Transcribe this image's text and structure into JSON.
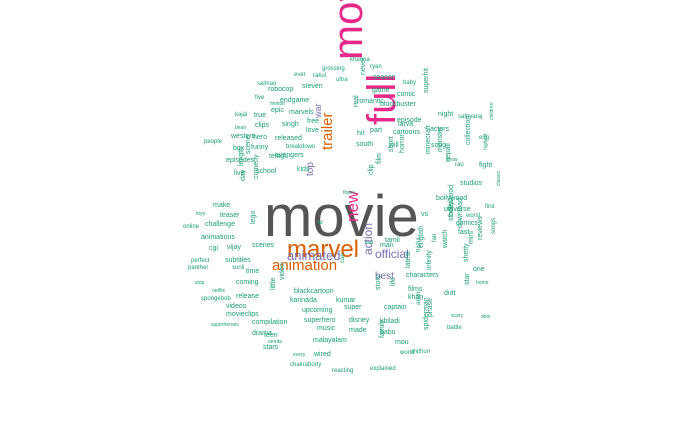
{
  "palette": {
    "dark": "#555555",
    "pink": "#e7298a",
    "orange": "#d95f02",
    "teal": "#1b9e77",
    "purple": "#7570b3"
  },
  "words": [
    {
      "text": "movie",
      "color": "dark"
    },
    {
      "text": "movies",
      "color": "pink"
    },
    {
      "text": "full",
      "color": "pink"
    },
    {
      "text": "marvel",
      "color": "orange"
    },
    {
      "text": "animation",
      "color": "orange"
    },
    {
      "text": "trailer",
      "color": "orange"
    },
    {
      "text": "new",
      "color": "pink"
    },
    {
      "text": "animated",
      "color": "purple"
    },
    {
      "text": "official",
      "color": "purple"
    },
    {
      "text": "action",
      "color": "purple"
    },
    {
      "text": "war",
      "color": "purple"
    },
    {
      "text": "best",
      "color": "purple"
    },
    {
      "text": "top",
      "color": "purple"
    },
    {
      "text": "khanna",
      "color": "teal"
    },
    {
      "text": "ryan",
      "color": "teal"
    },
    {
      "text": "grossing",
      "color": "teal"
    },
    {
      "text": "rakul",
      "color": "teal"
    },
    {
      "text": "game",
      "color": "teal"
    },
    {
      "text": "ever",
      "color": "teal"
    },
    {
      "text": "salman",
      "color": "teal"
    },
    {
      "text": "ultra",
      "color": "teal"
    },
    {
      "text": "never",
      "color": "teal"
    },
    {
      "text": "season",
      "color": "teal"
    },
    {
      "text": "baby",
      "color": "teal"
    },
    {
      "text": "robocop",
      "color": "teal"
    },
    {
      "text": "steven",
      "color": "teal"
    },
    {
      "text": "comic",
      "color": "teal"
    },
    {
      "text": "five",
      "color": "teal"
    },
    {
      "text": "motion",
      "color": "teal"
    },
    {
      "text": "endgame",
      "color": "teal"
    },
    {
      "text": "romantic",
      "color": "teal"
    },
    {
      "text": "blockbuster",
      "color": "teal"
    },
    {
      "text": "superhit",
      "color": "teal"
    },
    {
      "text": "night",
      "color": "teal"
    },
    {
      "text": "sathyaraj",
      "color": "teal"
    },
    {
      "text": "kajal",
      "color": "teal"
    },
    {
      "text": "true",
      "color": "teal"
    },
    {
      "text": "epic",
      "color": "teal"
    },
    {
      "text": "marvels",
      "color": "teal"
    },
    {
      "text": "real",
      "color": "teal"
    },
    {
      "text": "larva",
      "color": "teal"
    },
    {
      "text": "bean",
      "color": "teal"
    },
    {
      "text": "clips",
      "color": "teal"
    },
    {
      "text": "singh",
      "color": "teal"
    },
    {
      "text": "free",
      "color": "teal"
    },
    {
      "text": "episode",
      "color": "teal"
    },
    {
      "text": "hit",
      "color": "teal"
    },
    {
      "text": "love",
      "color": "teal"
    },
    {
      "text": "part",
      "color": "teal"
    },
    {
      "text": "cartoons",
      "color": "teal"
    },
    {
      "text": "actors",
      "color": "teal"
    },
    {
      "text": "western",
      "color": "teal"
    },
    {
      "text": "hero",
      "color": "teal"
    },
    {
      "text": "released",
      "color": "teal"
    },
    {
      "text": "south",
      "color": "teal"
    },
    {
      "text": "will",
      "color": "teal"
    },
    {
      "text": "song",
      "color": "teal"
    },
    {
      "text": "box",
      "color": "teal"
    },
    {
      "text": "funny",
      "color": "teal"
    },
    {
      "text": "breakdown",
      "color": "teal"
    },
    {
      "text": "avengers",
      "color": "teal"
    },
    {
      "text": "episodes",
      "color": "teal"
    },
    {
      "text": "kids",
      "color": "teal"
    },
    {
      "text": "telugu",
      "color": "teal"
    },
    {
      "text": "school",
      "color": "teal"
    },
    {
      "text": "horror",
      "color": "teal"
    },
    {
      "text": "short",
      "color": "teal"
    },
    {
      "text": "film",
      "color": "teal"
    },
    {
      "text": "clip",
      "color": "teal"
    },
    {
      "text": "minecraft",
      "color": "teal"
    },
    {
      "text": "monster",
      "color": "teal"
    },
    {
      "text": "studios",
      "color": "teal"
    },
    {
      "text": "fight",
      "color": "teal"
    },
    {
      "text": "collection",
      "color": "teal"
    },
    {
      "text": "bollywood",
      "color": "teal"
    },
    {
      "text": "universe",
      "color": "teal"
    },
    {
      "text": "comics",
      "color": "teal"
    },
    {
      "text": "teaser",
      "color": "teal"
    },
    {
      "text": "challenge",
      "color": "teal"
    },
    {
      "text": "animations",
      "color": "teal"
    },
    {
      "text": "make",
      "color": "teal"
    },
    {
      "text": "comedy",
      "color": "teal"
    },
    {
      "text": "lego",
      "color": "teal"
    },
    {
      "text": "scenes",
      "color": "teal"
    },
    {
      "text": "cgi",
      "color": "teal"
    },
    {
      "text": "vijay",
      "color": "teal"
    },
    {
      "text": "subtitles",
      "color": "teal"
    },
    {
      "text": "sunil",
      "color": "teal"
    },
    {
      "text": "time",
      "color": "teal"
    },
    {
      "text": "coming",
      "color": "teal"
    },
    {
      "text": "release",
      "color": "teal"
    },
    {
      "text": "videos",
      "color": "teal"
    },
    {
      "text": "movieclips",
      "color": "teal"
    },
    {
      "text": "compilation",
      "color": "teal"
    },
    {
      "text": "superheroes",
      "color": "teal"
    },
    {
      "text": "drama",
      "color": "teal"
    },
    {
      "text": "teen",
      "color": "teal"
    },
    {
      "text": "stars",
      "color": "teal"
    },
    {
      "text": "wired",
      "color": "teal"
    },
    {
      "text": "music",
      "color": "teal"
    },
    {
      "text": "made",
      "color": "teal"
    },
    {
      "text": "malayalam",
      "color": "teal"
    },
    {
      "text": "superhero",
      "color": "teal"
    },
    {
      "text": "disney",
      "color": "teal"
    },
    {
      "text": "upcoming",
      "color": "teal"
    },
    {
      "text": "super",
      "color": "teal"
    },
    {
      "text": "khiladi",
      "color": "teal"
    },
    {
      "text": "babu",
      "color": "teal"
    },
    {
      "text": "mou",
      "color": "teal"
    },
    {
      "text": "captain",
      "color": "teal"
    },
    {
      "text": "spiderman",
      "color": "teal"
    },
    {
      "text": "kannada",
      "color": "teal"
    },
    {
      "text": "kumar",
      "color": "teal"
    },
    {
      "text": "blackcartoon",
      "color": "teal"
    },
    {
      "text": "tamil",
      "color": "teal"
    },
    {
      "text": "man",
      "color": "teal"
    },
    {
      "text": "english",
      "color": "teal"
    },
    {
      "text": "latest",
      "color": "teal"
    },
    {
      "text": "story",
      "color": "teal"
    },
    {
      "text": "life",
      "color": "teal"
    },
    {
      "text": "films",
      "color": "teal"
    },
    {
      "text": "khan",
      "color": "teal"
    },
    {
      "text": "dutt",
      "color": "teal"
    },
    {
      "text": "star",
      "color": "teal"
    },
    {
      "text": "infinity",
      "color": "teal"
    },
    {
      "text": "shetty",
      "color": "teal"
    },
    {
      "text": "one",
      "color": "teal"
    },
    {
      "text": "mini",
      "color": "teal"
    },
    {
      "text": "worst",
      "color": "teal"
    },
    {
      "text": "watch",
      "color": "teal"
    },
    {
      "text": "download",
      "color": "teal"
    },
    {
      "text": "explained",
      "color": "teal"
    },
    {
      "text": "chakraborty",
      "color": "teal"
    },
    {
      "text": "reacting",
      "color": "teal"
    },
    {
      "text": "world",
      "color": "teal"
    },
    {
      "text": "mithun",
      "color": "teal"
    },
    {
      "text": "every",
      "color": "teal"
    },
    {
      "text": "amrita",
      "color": "teal"
    },
    {
      "text": "battle",
      "color": "teal"
    },
    {
      "text": "scary",
      "color": "teal"
    },
    {
      "text": "deol",
      "color": "teal"
    },
    {
      "text": "home",
      "color": "teal"
    },
    {
      "text": "online",
      "color": "teal"
    },
    {
      "text": "toys",
      "color": "teal"
    },
    {
      "text": "perfect",
      "color": "teal"
    },
    {
      "text": "panther",
      "color": "teal"
    },
    {
      "text": "stop",
      "color": "teal"
    },
    {
      "text": "netflix",
      "color": "teal"
    },
    {
      "text": "spongebob",
      "color": "teal"
    },
    {
      "text": "people",
      "color": "teal"
    },
    {
      "text": "length",
      "color": "teal"
    },
    {
      "text": "scene",
      "color": "teal"
    },
    {
      "text": "day",
      "color": "teal"
    },
    {
      "text": "live",
      "color": "teal"
    },
    {
      "text": "vs",
      "color": "teal"
    },
    {
      "text": "first",
      "color": "teal"
    },
    {
      "text": "classic",
      "color": "teal"
    },
    {
      "text": "highest",
      "color": "teal"
    },
    {
      "text": "eng",
      "color": "teal"
    },
    {
      "text": "rao",
      "color": "teal"
    },
    {
      "text": "show",
      "color": "teal"
    },
    {
      "text": "titans",
      "color": "teal"
    },
    {
      "text": "hd",
      "color": "teal"
    },
    {
      "text": "bad",
      "color": "teal"
    },
    {
      "text": "video",
      "color": "teal"
    },
    {
      "text": "little",
      "color": "teal"
    },
    {
      "text": "can",
      "color": "teal"
    },
    {
      "text": "arjun",
      "color": "teal"
    },
    {
      "text": "phase",
      "color": "teal"
    },
    {
      "text": "trisha",
      "color": "teal"
    },
    {
      "text": "fan",
      "color": "teal"
    },
    {
      "text": "songs",
      "color": "teal"
    },
    {
      "text": "children",
      "color": "teal"
    },
    {
      "text": "characters",
      "color": "teal"
    },
    {
      "text": "hollywood",
      "color": "teal"
    },
    {
      "text": "reviews",
      "color": "teal"
    },
    {
      "text": "stories",
      "color": "teal"
    },
    {
      "text": "fast",
      "color": "teal"
    },
    {
      "text": "nepali",
      "color": "teal"
    },
    {
      "text": "family",
      "color": "teal"
    }
  ]
}
